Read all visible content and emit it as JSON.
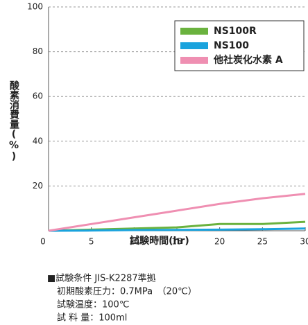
{
  "chart_data": {
    "type": "line",
    "xlabel": "試験時間(hr)",
    "ylabel": "酸素消費量(%)",
    "x": [
      0,
      5,
      10,
      15,
      20,
      25,
      30
    ],
    "series": [
      {
        "name": "NS100R",
        "color": "#6ab23e",
        "values": [
          0,
          0.5,
          1,
          1.5,
          3,
          3,
          4
        ]
      },
      {
        "name": "NS100",
        "color": "#1aa3dd",
        "values": [
          0,
          0.1,
          0.3,
          0.4,
          0.5,
          0.7,
          1
        ]
      },
      {
        "name": "他社炭化水素 A",
        "color": "#ef8fb2",
        "values": [
          0,
          3,
          6,
          9,
          12,
          14.5,
          16.5
        ]
      }
    ],
    "xlim": [
      0,
      30
    ],
    "xticks": [
      0,
      5,
      10,
      15,
      20,
      25,
      30
    ],
    "ylim": [
      0,
      100
    ],
    "yticks": [
      20,
      40,
      60,
      80,
      100
    ],
    "grid": true,
    "legend": "upper right",
    "notes": [
      "■試験条件 JIS-K2287準拠",
      "初期酸素圧力：0.7MPa　（20℃）",
      "試験温度：100℃",
      "試 料 量：100ml"
    ]
  }
}
